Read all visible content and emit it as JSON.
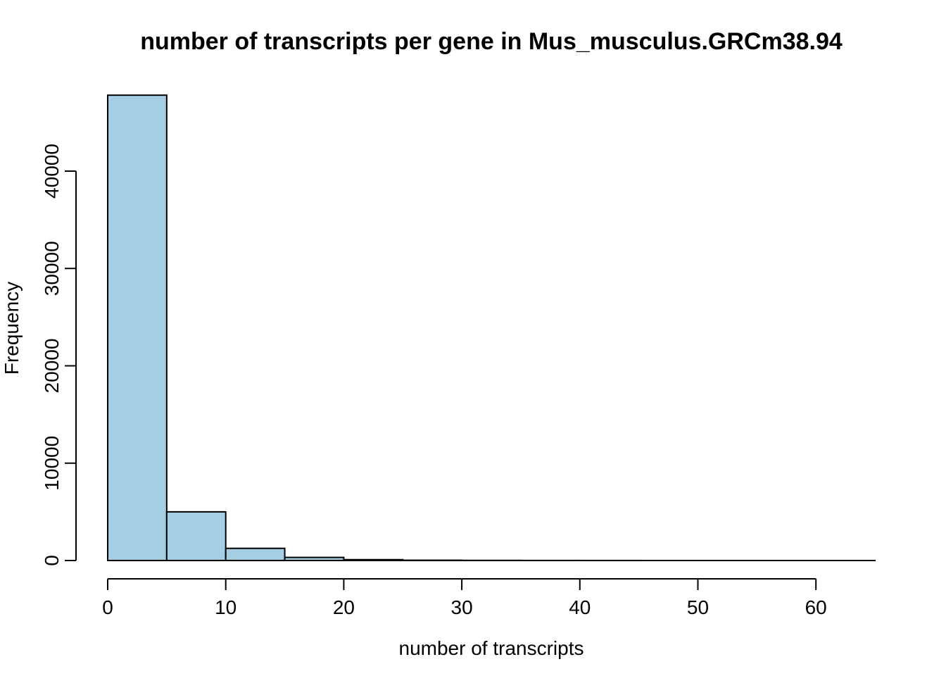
{
  "chart_data": {
    "type": "histogram",
    "title": "number of transcripts per gene in Mus_musculus.GRCm38.94",
    "xlabel": "number of transcripts",
    "ylabel": "Frequency",
    "bar_color": "#a6cee3",
    "bins": [
      {
        "x0": 0,
        "x1": 5,
        "count": 47800
      },
      {
        "x0": 5,
        "x1": 10,
        "count": 5000
      },
      {
        "x0": 10,
        "x1": 15,
        "count": 1250
      },
      {
        "x0": 15,
        "x1": 20,
        "count": 320
      },
      {
        "x0": 20,
        "x1": 25,
        "count": 90
      },
      {
        "x0": 25,
        "x1": 30,
        "count": 30
      },
      {
        "x0": 30,
        "x1": 35,
        "count": 15
      },
      {
        "x0": 35,
        "x1": 40,
        "count": 8
      },
      {
        "x0": 40,
        "x1": 45,
        "count": 5
      },
      {
        "x0": 45,
        "x1": 50,
        "count": 3
      },
      {
        "x0": 50,
        "x1": 55,
        "count": 2
      },
      {
        "x0": 55,
        "x1": 60,
        "count": 1
      },
      {
        "x0": 60,
        "x1": 65,
        "count": 1
      }
    ],
    "x_ticks": [
      0,
      10,
      20,
      30,
      40,
      50,
      60
    ],
    "y_ticks": [
      0,
      10000,
      20000,
      30000,
      40000
    ],
    "xlim": [
      0,
      65
    ],
    "ylim": [
      0,
      47800
    ],
    "grid": false
  }
}
